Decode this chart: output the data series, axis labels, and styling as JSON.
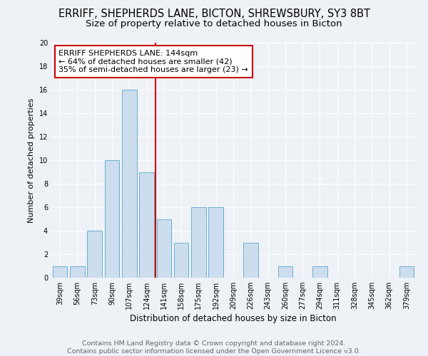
{
  "title": "ERRIFF, SHEPHERDS LANE, BICTON, SHREWSBURY, SY3 8BT",
  "subtitle": "Size of property relative to detached houses in Bicton",
  "xlabel": "Distribution of detached houses by size in Bicton",
  "ylabel": "Number of detached properties",
  "footer_line1": "Contains HM Land Registry data © Crown copyright and database right 2024.",
  "footer_line2": "Contains public sector information licensed under the Open Government Licence v3.0.",
  "categories": [
    "39sqm",
    "56sqm",
    "73sqm",
    "90sqm",
    "107sqm",
    "124sqm",
    "141sqm",
    "158sqm",
    "175sqm",
    "192sqm",
    "209sqm",
    "226sqm",
    "243sqm",
    "260sqm",
    "277sqm",
    "294sqm",
    "311sqm",
    "328sqm",
    "345sqm",
    "362sqm",
    "379sqm"
  ],
  "values": [
    1,
    1,
    4,
    10,
    16,
    9,
    5,
    3,
    6,
    6,
    0,
    3,
    0,
    1,
    0,
    1,
    0,
    0,
    0,
    0,
    1
  ],
  "bar_color": "#ccdded",
  "bar_edge_color": "#6aafd6",
  "marker_color": "#cc0000",
  "annotation_text_line1": "ERRIFF SHEPHERDS LANE: 144sqm",
  "annotation_text_line2": "← 64% of detached houses are smaller (42)",
  "annotation_text_line3": "35% of semi-detached houses are larger (23) →",
  "annotation_box_color": "white",
  "annotation_box_edge_color": "#cc0000",
  "ylim": [
    0,
    20
  ],
  "yticks": [
    0,
    2,
    4,
    6,
    8,
    10,
    12,
    14,
    16,
    18,
    20
  ],
  "title_fontsize": 10.5,
  "subtitle_fontsize": 9.5,
  "xlabel_fontsize": 8.5,
  "ylabel_fontsize": 8,
  "tick_fontsize": 7,
  "annotation_fontsize": 8,
  "footer_fontsize": 6.8,
  "background_color": "#eef2f7",
  "grid_color": "#ffffff",
  "marker_bar_index": 6
}
